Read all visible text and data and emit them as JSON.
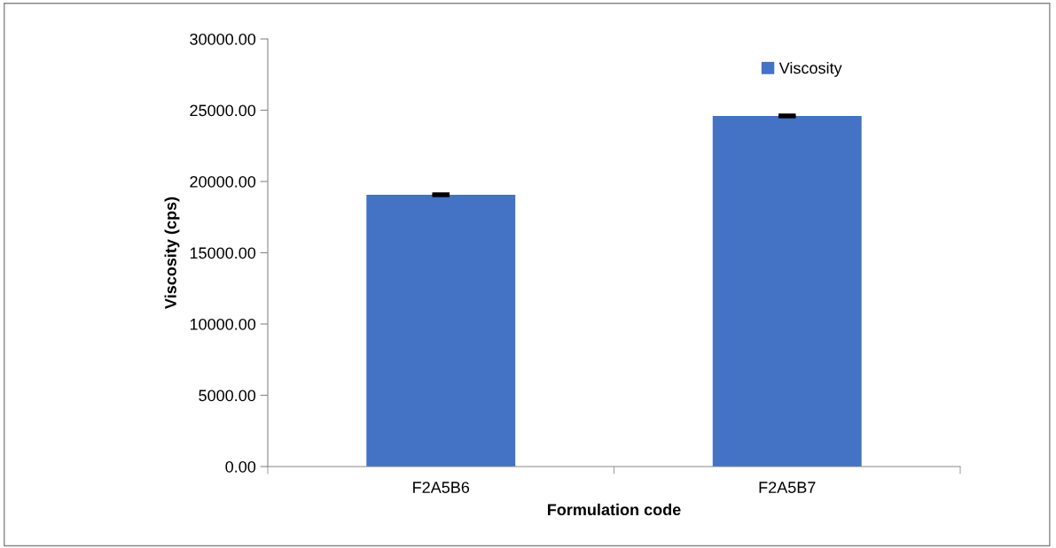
{
  "chart_data": {
    "type": "bar",
    "xlabel": "Formulation code",
    "ylabel": "Viscosity (cps)",
    "categories": [
      "F2A5B6",
      "F2A5B7"
    ],
    "series": [
      {
        "name": "Viscosity",
        "color": "#4472c4",
        "values": [
          19070,
          24600
        ],
        "errors": [
          60,
          60
        ]
      }
    ],
    "ylim": [
      0,
      30000
    ],
    "yticks": [
      {
        "value": 0,
        "label": "0.00"
      },
      {
        "value": 5000,
        "label": "5000.00"
      },
      {
        "value": 10000,
        "label": "10000.00"
      },
      {
        "value": 15000,
        "label": "15000.00"
      },
      {
        "value": 20000,
        "label": "20000.00"
      },
      {
        "value": 25000,
        "label": "25000.00"
      },
      {
        "value": 30000,
        "label": "30000.00"
      }
    ],
    "grid": false,
    "legend": "top right"
  }
}
